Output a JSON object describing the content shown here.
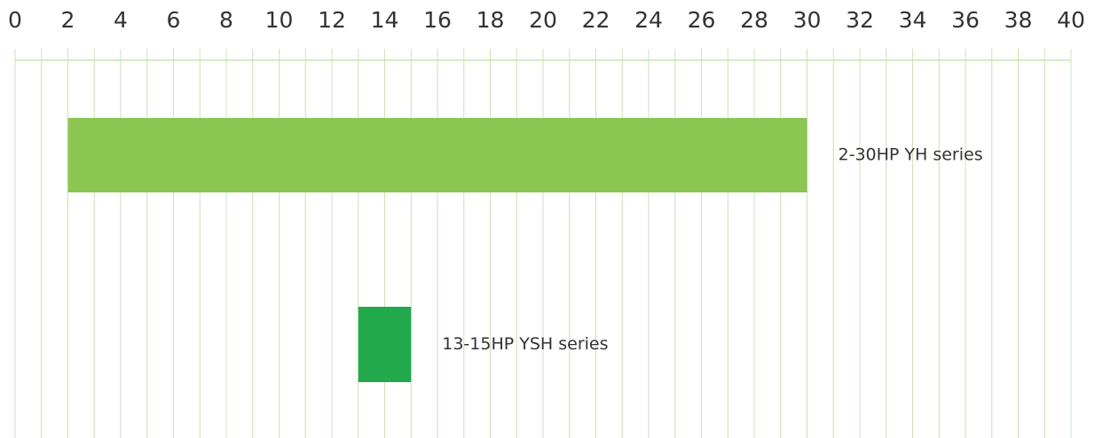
{
  "chart_data": {
    "type": "range-bar",
    "categories": [
      "2-30HP YH series",
      "13-15HP YSH series"
    ],
    "starts": [
      2,
      13
    ],
    "ends": [
      30,
      15
    ],
    "colors": [
      "#8bc653",
      "#21a94c"
    ],
    "xlim": [
      0,
      40
    ],
    "xticks": [
      0,
      2,
      4,
      6,
      8,
      10,
      12,
      14,
      16,
      18,
      20,
      22,
      24,
      26,
      28,
      30,
      32,
      34,
      36,
      38,
      40
    ],
    "minor_xticks": [
      1,
      3,
      5,
      7,
      9,
      11,
      13,
      15,
      17,
      19,
      21,
      23,
      25,
      27,
      29,
      31,
      33,
      35,
      37,
      39
    ],
    "grid": true,
    "grid_color": "#c9e4b4"
  }
}
